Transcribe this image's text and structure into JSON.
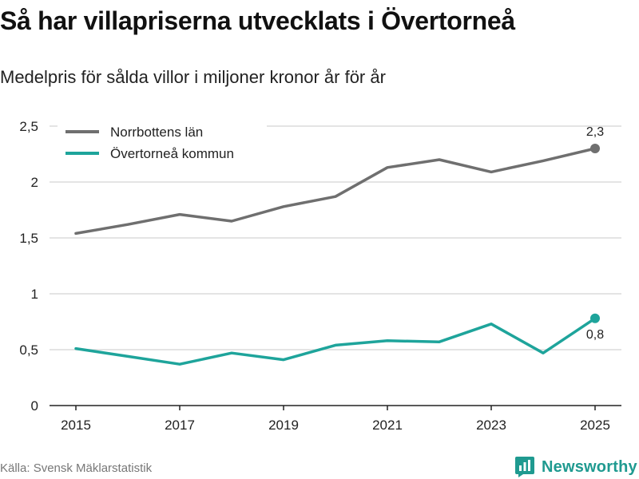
{
  "title": "Så har villapriserna utvecklats i Övertorneå",
  "subtitle": "Medelpris för sålda villor i miljoner kronor år för år",
  "source": "Källa: Svensk Mäklarstatistik",
  "brand": {
    "name": "Newsworthy",
    "icon": "newsworthy-logo-icon",
    "color": "#1f9a90"
  },
  "chart_data": {
    "type": "line",
    "title": "Så har villapriserna utvecklats i Övertorneå",
    "subtitle": "Medelpris för sålda villor i miljoner kronor år för år",
    "xlabel": "",
    "ylabel": "",
    "x": [
      2015,
      2016,
      2017,
      2018,
      2019,
      2020,
      2021,
      2022,
      2023,
      2024,
      2025
    ],
    "xticks": [
      "2015",
      "2017",
      "2019",
      "2021",
      "2023",
      "2025"
    ],
    "xlim": [
      2015,
      2025
    ],
    "ylim": [
      0,
      2.5
    ],
    "yticks": [
      "0",
      "0,5",
      "1",
      "1,5",
      "2",
      "2,5"
    ],
    "grid": true,
    "legend_position": "top-left",
    "series": [
      {
        "name": "Norrbottens län",
        "color": "#6f6f6f",
        "values": [
          1.54,
          1.62,
          1.71,
          1.65,
          1.78,
          1.87,
          2.13,
          2.2,
          2.09,
          2.19,
          2.3
        ],
        "end_label": "2,3"
      },
      {
        "name": "Övertorneå kommun",
        "color": "#1ea49b",
        "values": [
          0.51,
          0.44,
          0.37,
          0.47,
          0.41,
          0.54,
          0.58,
          0.57,
          0.73,
          0.47,
          0.78
        ],
        "end_label": "0,8"
      }
    ]
  }
}
